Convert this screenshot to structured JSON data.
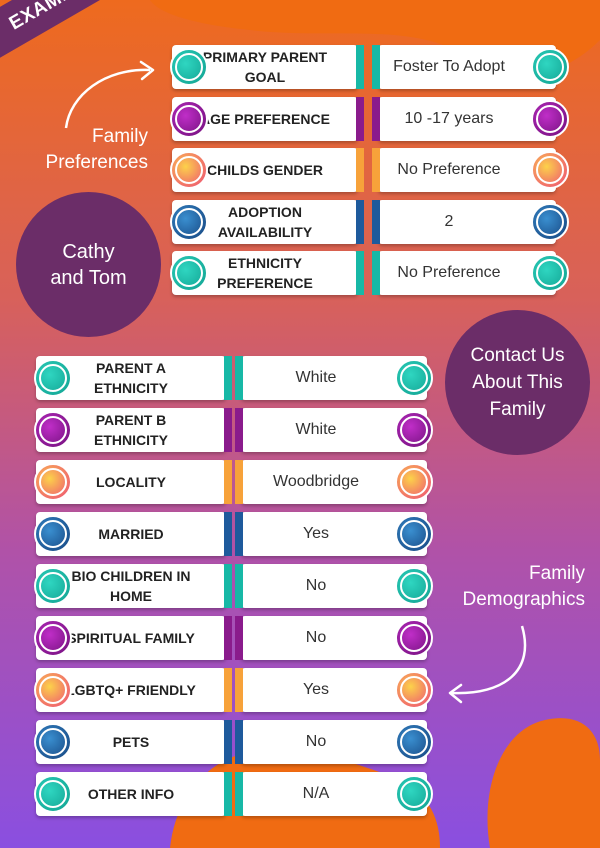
{
  "banner": "EXAMPLE PROFILE",
  "family_name": "Cathy\nand Tom",
  "contact": "Contact Us\nAbout This\nFamily",
  "preferences_heading": "Family\nPreferences",
  "demographics_heading": "Family\nDemographics",
  "preferences": [
    {
      "label": "PRIMARY PARENT GOAL",
      "value": "Foster To Adopt",
      "style": "teal"
    },
    {
      "label": "AGE PREFERENCE",
      "value": "10 -17 years",
      "style": "purple"
    },
    {
      "label": "CHILDS GENDER",
      "value": "No Preference",
      "style": "orange"
    },
    {
      "label": "ADOPTION AVAILABILITY",
      "value": "2",
      "style": "blue"
    },
    {
      "label": "ETHNICITY PREFERENCE",
      "value": "No Preference",
      "style": "teal"
    }
  ],
  "demographics": [
    {
      "label": "PARENT A ETHNICITY",
      "value": "White",
      "style": "teal"
    },
    {
      "label": "PARENT B ETHNICITY",
      "value": "White",
      "style": "purple"
    },
    {
      "label": "LOCALITY",
      "value": "Woodbridge",
      "style": "orange"
    },
    {
      "label": "MARRIED",
      "value": "Yes",
      "style": "blue"
    },
    {
      "label": "BIO CHILDREN IN HOME",
      "value": "No",
      "style": "teal"
    },
    {
      "label": "SPIRITUAL FAMILY",
      "value": "No",
      "style": "purple"
    },
    {
      "label": "LGBTQ+ FRIENDLY",
      "value": "Yes",
      "style": "orange"
    },
    {
      "label": "PETS",
      "value": "No",
      "style": "blue"
    },
    {
      "label": "OTHER INFO",
      "value": "N/A",
      "style": "teal"
    }
  ],
  "colors": {
    "teal": "#17b8a6",
    "purple": "#8a1b8c",
    "orange": "#f7a23a",
    "blue": "#1e5a9c",
    "plum": "#6b2d68",
    "bg_top": "#ee6a1e",
    "bg_bottom": "#8a4fe0"
  }
}
